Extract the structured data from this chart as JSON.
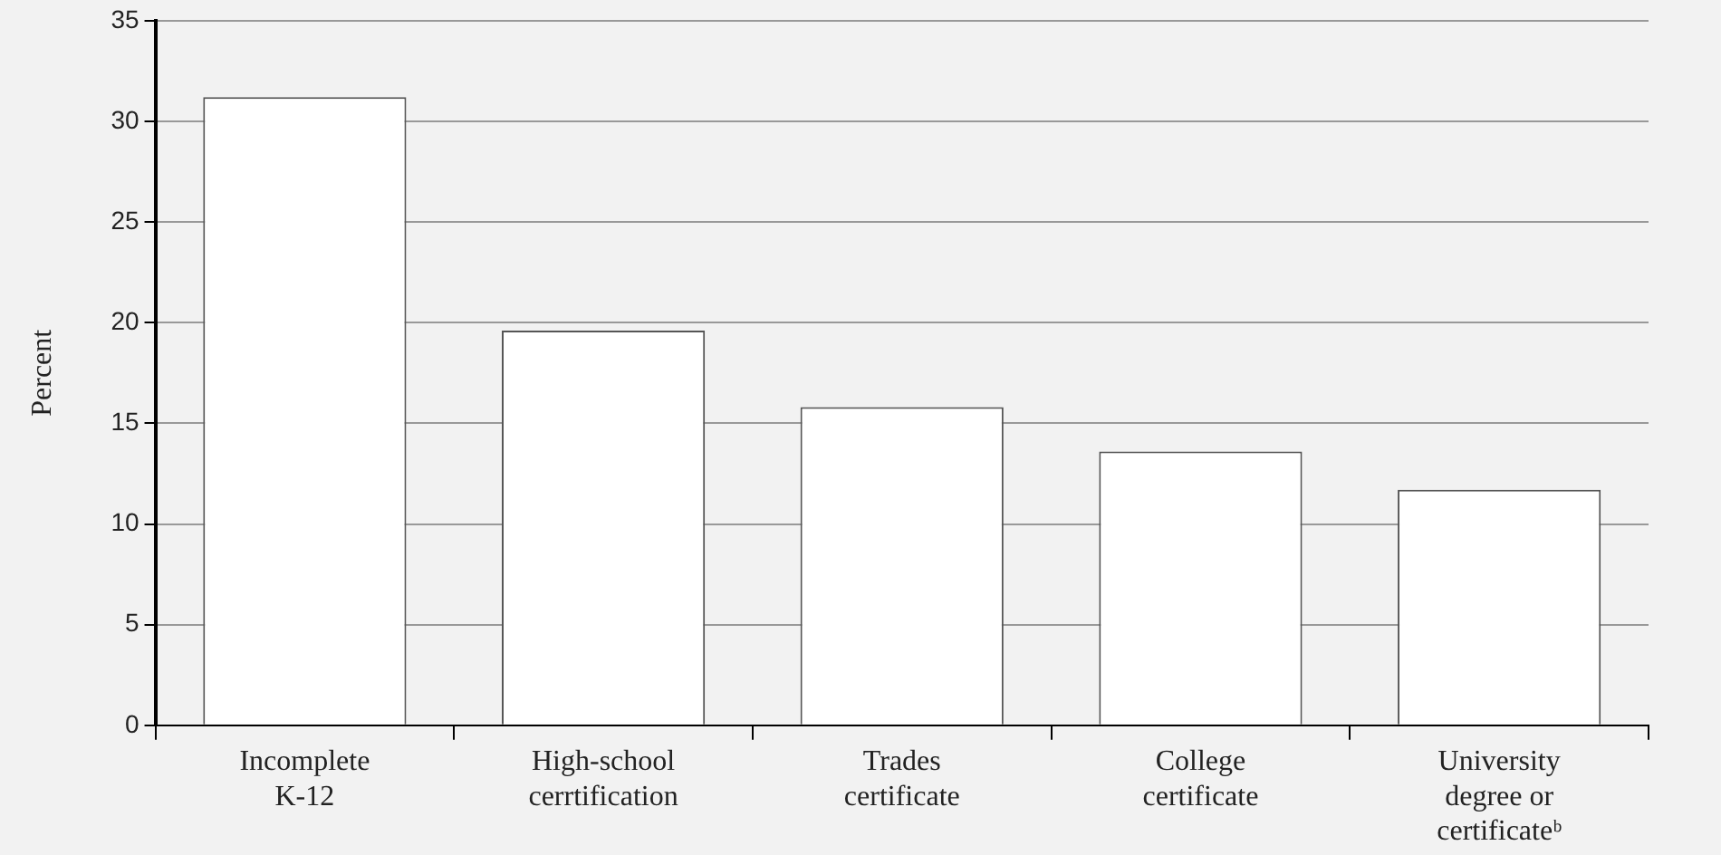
{
  "chart_data": {
    "type": "bar",
    "ylabel": "Percent",
    "categories": [
      "Incomplete K-12",
      "High-school cerrtification",
      "Trades certificate",
      "College certificate",
      "University degree or certificateᵇ"
    ],
    "values": [
      31.2,
      19.6,
      15.8,
      13.6,
      11.7
    ],
    "color": "#ffffff",
    "ylim": [
      0,
      35
    ],
    "yticks": [
      0,
      5,
      10,
      15,
      20,
      25,
      30,
      35
    ],
    "grid": "y"
  }
}
